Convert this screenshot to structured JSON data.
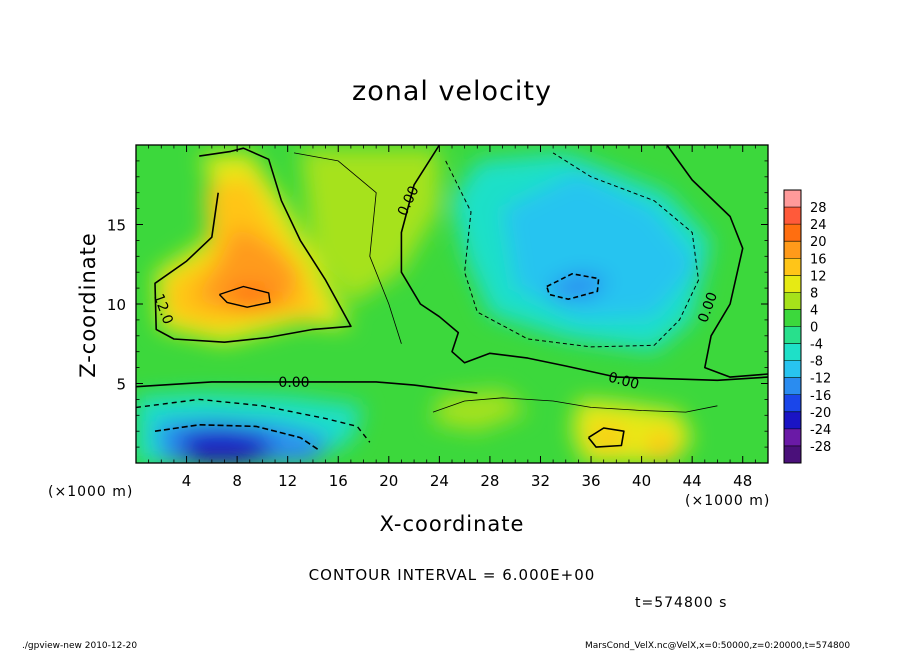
{
  "chart_data": {
    "type": "heatmap",
    "title": "zonal velocity",
    "xlabel": "X-coordinate",
    "ylabel": "Z-coordinate",
    "x_unit": "(×1000 m)",
    "y_unit": "(×1000 m)",
    "xlim": [
      0,
      50
    ],
    "ylim": [
      0,
      20
    ],
    "x_ticks": [
      4,
      8,
      12,
      16,
      20,
      24,
      28,
      32,
      36,
      40,
      44,
      48
    ],
    "y_ticks": [
      5,
      10,
      15
    ],
    "colorbar": {
      "labels": [
        28,
        24,
        20,
        16,
        12,
        8,
        4,
        0,
        -4,
        -8,
        -12,
        -16,
        -20,
        -24,
        -28
      ],
      "colors": [
        "#ff9a9a",
        "#ff5a3a",
        "#ff6e10",
        "#ff9a1a",
        "#ffc518",
        "#e6ea14",
        "#a6e21a",
        "#3cd83c",
        "#28e08c",
        "#1ee0c8",
        "#28c4f0",
        "#2a8cf0",
        "#1a46ea",
        "#1a14c4",
        "#6a1aa6",
        "#4a107a"
      ]
    },
    "field_features": [
      {
        "x": 10,
        "z": 11,
        "value": 20,
        "kind": "max"
      },
      {
        "x": 35,
        "z": 11.5,
        "value": -12,
        "kind": "min"
      },
      {
        "x": 7.5,
        "z": 1.2,
        "value": -20,
        "kind": "min"
      },
      {
        "x": 37,
        "z": 1.5,
        "value": 16,
        "kind": "max"
      },
      {
        "x": 41,
        "z": 1.5,
        "value": 14,
        "kind": "max"
      }
    ],
    "contour_labels": [
      {
        "text": "0.00",
        "x": 21.5,
        "z": 16.5,
        "rotate": -65
      },
      {
        "text": "12.0",
        "x": 2.2,
        "z": 9.7,
        "rotate": 70
      },
      {
        "text": "0.00",
        "x": 12.5,
        "z": 5.1,
        "rotate": 0
      },
      {
        "text": "0.00",
        "x": 38.6,
        "z": 5.2,
        "rotate": 15
      },
      {
        "text": "0.00",
        "x": 45.2,
        "z": 9.8,
        "rotate": -70
      }
    ]
  },
  "contour_interval": "CONTOUR INTERVAL = 6.000E+00",
  "time_label": "t=574800 s",
  "footer_left": "./gpview-new  2010-12-20",
  "footer_right": "MarsCond_VelX.nc@VelX,x=0:50000,z=0:20000,t=574800"
}
